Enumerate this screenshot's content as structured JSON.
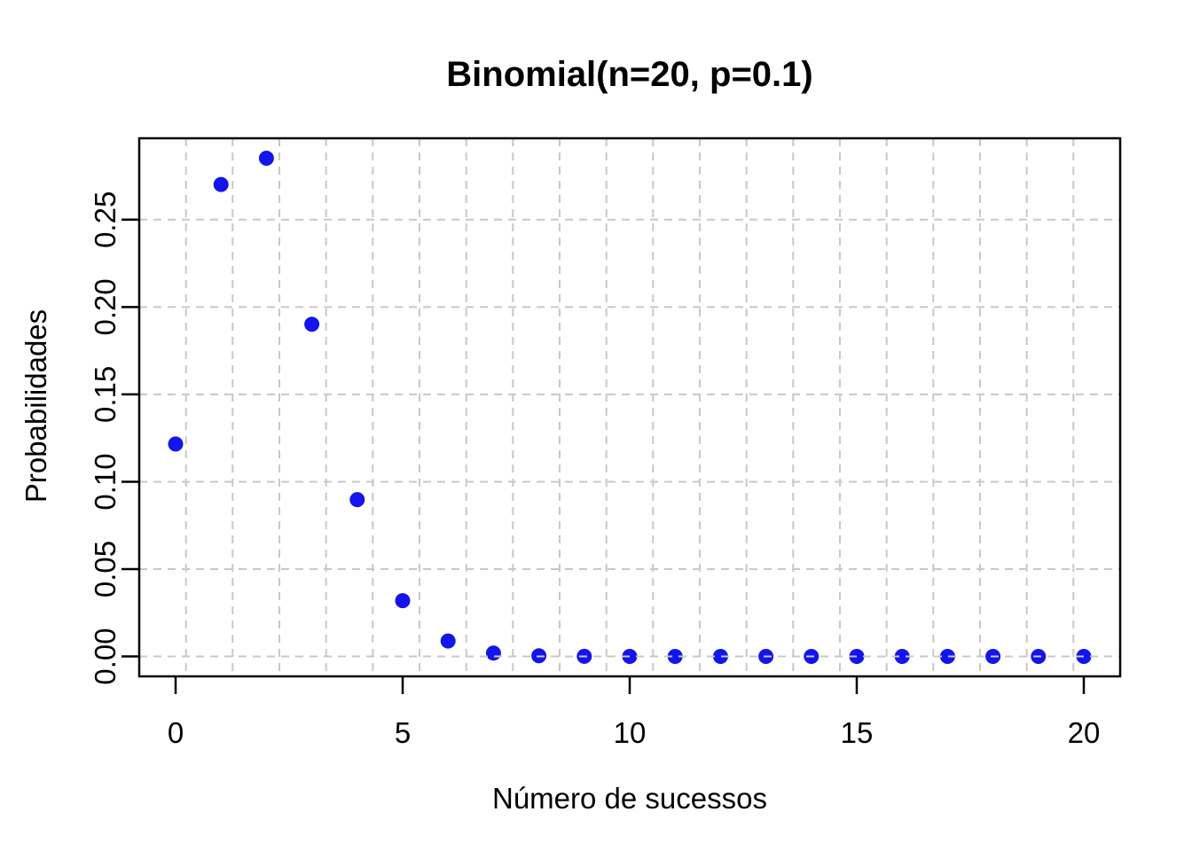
{
  "chart_data": {
    "type": "scatter",
    "title": "Binomial(n=20, p=0.1)",
    "xlabel": "Número de sucessos",
    "ylabel": "Probabilidades",
    "x": [
      0,
      1,
      2,
      3,
      4,
      5,
      6,
      7,
      8,
      9,
      10,
      11,
      12,
      13,
      14,
      15,
      16,
      17,
      18,
      19,
      20
    ],
    "y": [
      0.121577,
      0.27017,
      0.28518,
      0.19012,
      0.089779,
      0.031921,
      0.008867,
      0.00197,
      0.000356,
      5.3e-05,
      6e-06,
      1e-06,
      0,
      0,
      0,
      0,
      0,
      0,
      0,
      0,
      0
    ],
    "xlim": [
      -0.8,
      20.8
    ],
    "ylim": [
      -0.0114,
      0.2966
    ],
    "xticks": [
      0,
      5,
      10,
      15,
      20
    ],
    "xtick_labels": [
      "0",
      "5",
      "10",
      "15",
      "20"
    ],
    "yticks": [
      0.0,
      0.05,
      0.1,
      0.15,
      0.2,
      0.25
    ],
    "ytick_labels": [
      "0.00",
      "0.05",
      "0.10",
      "0.15",
      "0.20",
      "0.25"
    ],
    "grid": {
      "style": "dashed",
      "vertical_divisions": 21,
      "horizontal_lines": "at_yticks",
      "drawn_over_points": true
    },
    "legend": null,
    "point_radius_px": 8.5,
    "colors": {
      "point": "#1414EC",
      "grid": "#C8C8C8",
      "axis": "#000000",
      "text": "#000000",
      "background": "#FFFFFF"
    }
  }
}
